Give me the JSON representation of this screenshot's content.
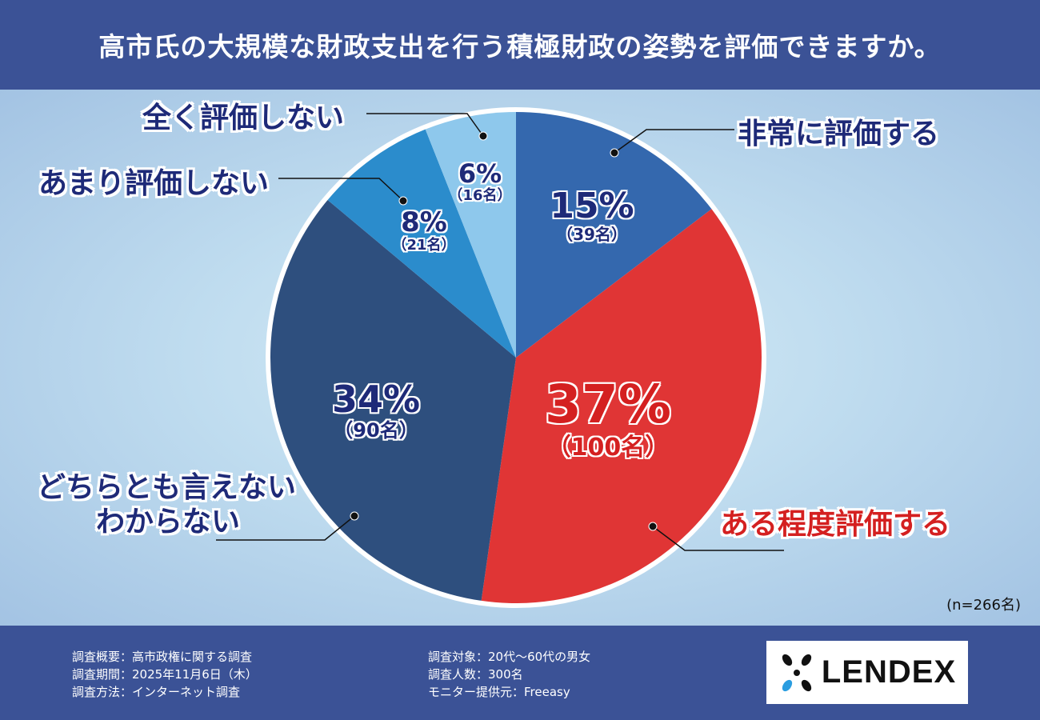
{
  "title": "高市氏の大規模な財政支出を行う積極財政の姿勢を評価できますか。",
  "chart_data": {
    "type": "pie",
    "title": "高市氏の大規模な財政支出を行う積極財政の姿勢を評価できますか。",
    "start": "top",
    "direction": "clockwise",
    "slices": [
      {
        "label": "非常に評価する",
        "percent": 15,
        "count": 39,
        "pct_text": "15%",
        "count_text": "（39名）",
        "color": "#3468ae"
      },
      {
        "label": "ある程度評価する",
        "percent": 37,
        "count": 100,
        "pct_text": "37%",
        "count_text": "（100名）",
        "color": "#e03535"
      },
      {
        "label": "どちらとも言えない",
        "label2": "わからない",
        "percent": 34,
        "count": 90,
        "pct_text": "34%",
        "count_text": "（90名）",
        "color": "#2e4f7e"
      },
      {
        "label": "あまり評価しない",
        "percent": 8,
        "count": 21,
        "pct_text": "8%",
        "count_text": "（21名）",
        "color": "#2b8ccc"
      },
      {
        "label": "全く評価しない",
        "percent": 6,
        "count": 16,
        "pct_text": "6%",
        "count_text": "（16名）",
        "color": "#8ec8ec"
      }
    ],
    "n": "(n=266名)"
  },
  "footer": {
    "left": [
      "調査概要：高市政権に関する調査",
      "調査期間：2025年11月6日（木）",
      "調査方法：インターネット調査"
    ],
    "right": [
      "調査対象：20代〜60代の男女",
      "調査人数：300名",
      "モニター提供元：Freeasy"
    ],
    "logo": "LENDEX"
  }
}
